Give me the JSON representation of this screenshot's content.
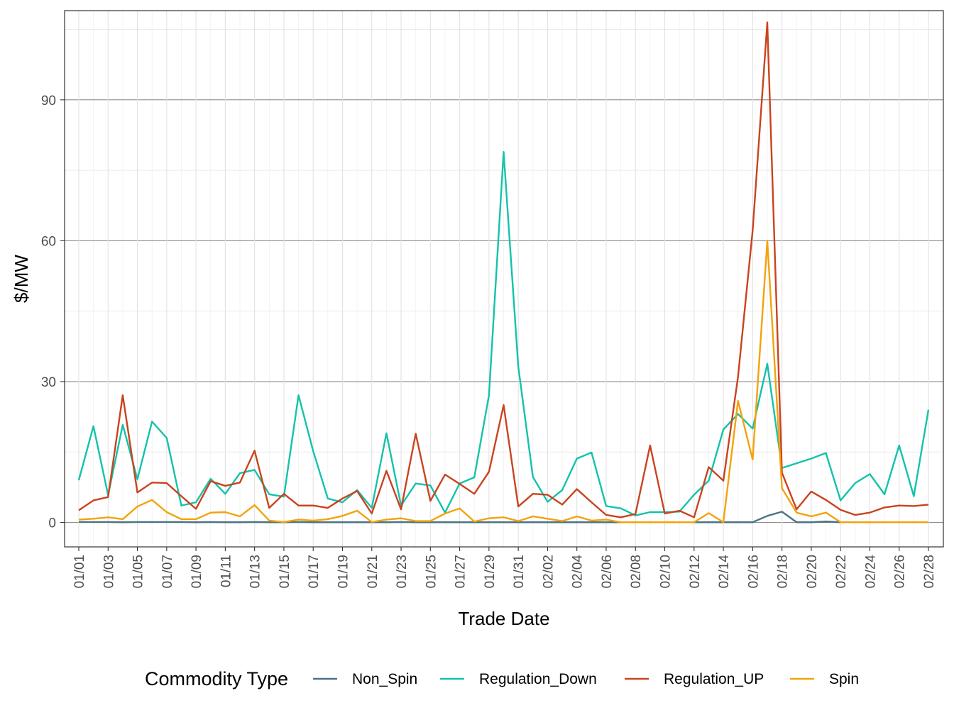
{
  "chart_data": {
    "type": "line",
    "xlabel": "Trade Date",
    "ylabel": "$/MW",
    "ylim": [
      -5.2,
      109
    ],
    "y_ticks": [
      0,
      30,
      60,
      90
    ],
    "grid": true,
    "legend_title": "Commodity Type",
    "legend_position": "bottom",
    "x": [
      "01/01",
      "01/02",
      "01/03",
      "01/04",
      "01/05",
      "01/06",
      "01/07",
      "01/08",
      "01/09",
      "01/10",
      "01/11",
      "01/12",
      "01/13",
      "01/14",
      "01/15",
      "01/16",
      "01/17",
      "01/18",
      "01/19",
      "01/20",
      "01/21",
      "01/22",
      "01/23",
      "01/24",
      "01/25",
      "01/26",
      "01/27",
      "01/28",
      "01/29",
      "01/30",
      "01/31",
      "02/01",
      "02/02",
      "02/03",
      "02/04",
      "02/05",
      "02/06",
      "02/07",
      "02/08",
      "02/09",
      "02/10",
      "02/11",
      "02/12",
      "02/13",
      "02/14",
      "02/15",
      "02/16",
      "02/17",
      "02/18",
      "02/19",
      "02/20",
      "02/21",
      "02/22",
      "02/23",
      "02/24",
      "02/25",
      "02/26",
      "02/27",
      "02/28"
    ],
    "x_tick_labels": [
      "01/01",
      "01/03",
      "01/05",
      "01/07",
      "01/09",
      "01/11",
      "01/13",
      "01/15",
      "01/17",
      "01/19",
      "01/21",
      "01/23",
      "01/25",
      "01/27",
      "01/29",
      "01/31",
      "02/02",
      "02/04",
      "02/06",
      "02/08",
      "02/10",
      "02/12",
      "02/14",
      "02/16",
      "02/18",
      "02/20",
      "02/22",
      "02/24",
      "02/26",
      "02/28"
    ],
    "series": [
      {
        "name": "Non_Spin",
        "color": "#4a7384",
        "values": [
          0.1,
          0.1,
          0.1,
          0.05,
          0.1,
          0.1,
          0.1,
          0.1,
          0.05,
          0.1,
          0.05,
          0.05,
          0.1,
          0.05,
          0.05,
          0.1,
          0.05,
          0.05,
          0.05,
          0.05,
          0.05,
          0.05,
          0.1,
          0.05,
          0.05,
          0.05,
          0.05,
          0.05,
          0.05,
          0.05,
          0.05,
          0.05,
          0.05,
          0.05,
          0.05,
          0.05,
          0.05,
          0.05,
          0.05,
          0.05,
          0.05,
          0.05,
          0.05,
          0.05,
          0.05,
          0.05,
          0.05,
          1.4,
          2.3,
          0.05,
          0.05,
          0.2,
          0.05,
          0.05,
          0.05,
          0.05,
          0.05,
          0.05,
          0.05
        ]
      },
      {
        "name": "Regulation_Down",
        "color": "#13c3aa",
        "values": [
          9.0,
          20.5,
          5.8,
          20.8,
          9.2,
          21.5,
          18.0,
          3.6,
          4.3,
          9.3,
          6.1,
          10.5,
          11.2,
          6.0,
          5.5,
          27.1,
          15.2,
          5.1,
          4.3,
          6.9,
          3.1,
          19.0,
          3.6,
          8.3,
          7.9,
          2.1,
          8.3,
          9.6,
          27.1,
          78.9,
          33.2,
          9.7,
          4.4,
          6.9,
          13.6,
          14.9,
          3.5,
          3.0,
          1.5,
          2.2,
          2.2,
          2.3,
          5.9,
          8.9,
          19.8,
          23.1,
          20.0,
          33.8,
          11.6,
          12.6,
          13.6,
          14.8,
          4.7,
          8.4,
          10.3,
          6.0,
          16.4,
          5.6,
          24.0
        ]
      },
      {
        "name": "Regulation_UP",
        "color": "#c9431f",
        "values": [
          2.6,
          4.7,
          5.4,
          27.1,
          6.4,
          8.5,
          8.4,
          5.6,
          2.9,
          8.8,
          7.8,
          8.5,
          15.3,
          3.1,
          6.1,
          3.6,
          3.6,
          3.1,
          5.1,
          6.7,
          1.9,
          11.0,
          2.8,
          18.9,
          4.6,
          10.2,
          8.2,
          6.1,
          10.8,
          25.0,
          3.4,
          6.1,
          5.9,
          3.8,
          7.1,
          4.3,
          1.6,
          1.1,
          1.8,
          16.4,
          1.9,
          2.5,
          1.1,
          11.8,
          8.9,
          31.0,
          62.2,
          106.5,
          10.6,
          2.8,
          6.6,
          4.8,
          2.7,
          1.6,
          2.1,
          3.2,
          3.6,
          3.5,
          3.8
        ]
      },
      {
        "name": "Spin",
        "color": "#f4a20c",
        "values": [
          0.6,
          0.8,
          1.1,
          0.7,
          3.4,
          4.8,
          2.2,
          0.7,
          0.7,
          2.1,
          2.2,
          1.3,
          3.7,
          0.4,
          0.1,
          0.6,
          0.4,
          0.7,
          1.4,
          2.5,
          0.1,
          0.6,
          0.9,
          0.3,
          0.3,
          1.9,
          3.0,
          0.2,
          0.9,
          1.1,
          0.3,
          1.3,
          0.8,
          0.3,
          1.3,
          0.4,
          0.6,
          0.05,
          0.05,
          0.05,
          0.05,
          0.05,
          0.05,
          2.0,
          0.05,
          25.9,
          13.4,
          60.0,
          7.3,
          2.1,
          1.3,
          2.1,
          0.05,
          0.05,
          0.05,
          0.05,
          0.05,
          0.05,
          0.05
        ]
      }
    ]
  }
}
